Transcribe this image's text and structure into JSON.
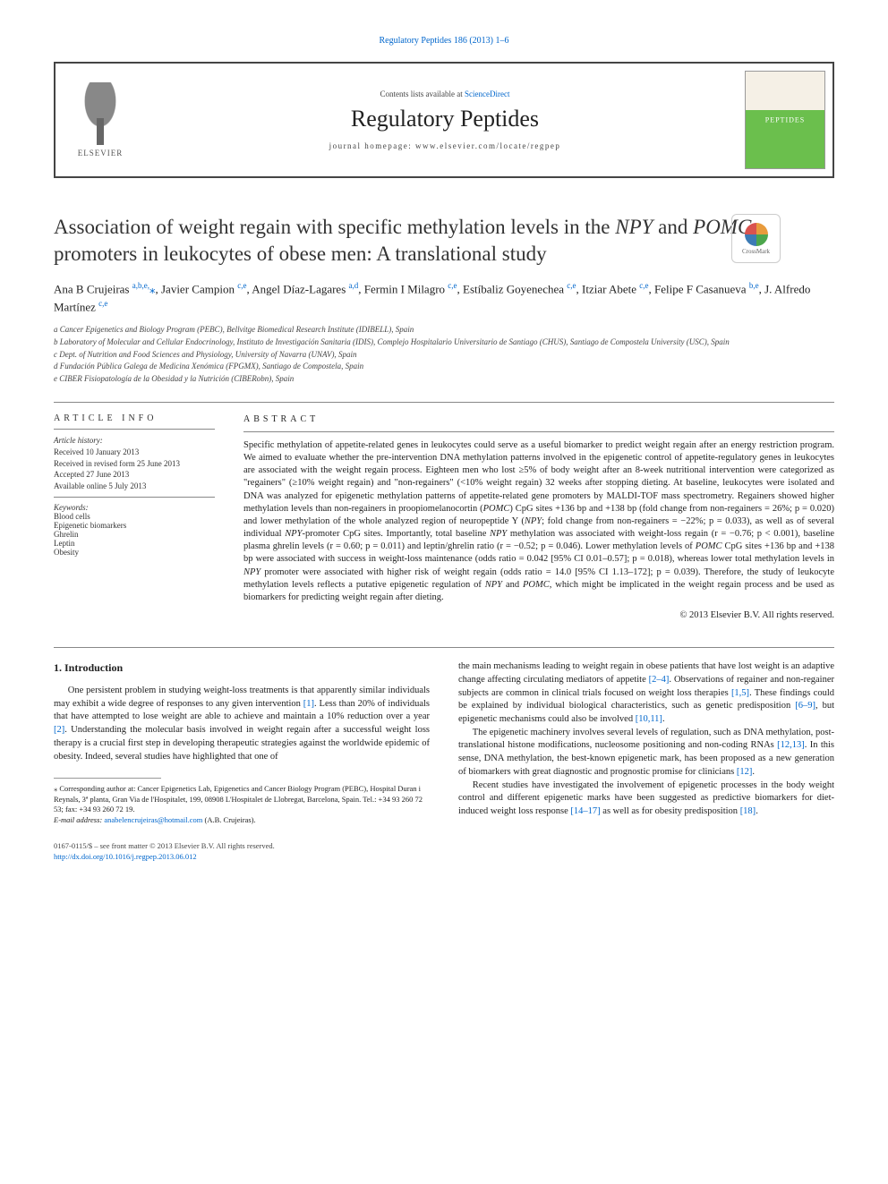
{
  "top_link": "Regulatory Peptides 186 (2013) 1–6",
  "header": {
    "contents_prefix": "Contents lists available at ",
    "contents_link": "ScienceDirect",
    "journal_title": "Regulatory Peptides",
    "homepage_prefix": "journal homepage: ",
    "homepage_url": "www.elsevier.com/locate/regpep",
    "elsevier": "ELSEVIER"
  },
  "crossmark": "CrossMark",
  "title": {
    "plain": "Association of weight regain with specific methylation levels in the NPY and POMC promoters in leukocytes of obese men: A translational study"
  },
  "authors_html": "Ana B Crujeiras <sup>a,b,e,</sup><span class='star'>⁎</span>, Javier Campion <sup>c,e</sup>, Angel Díaz-Lagares <sup>a,d</sup>, Fermin I Milagro <sup>c,e</sup>, Estíbaliz Goyenechea <sup>c,e</sup>, Itziar Abete <sup>c,e</sup>, Felipe F Casanueva <sup>b,e</sup>, J. Alfredo Martínez <sup>c,e</sup>",
  "affiliations": [
    "a  Cancer Epigenetics and Biology Program (PEBC), Bellvitge Biomedical Research Institute (IDIBELL), Spain",
    "b  Laboratory of Molecular and Cellular Endocrinology, Instituto de Investigación Sanitaria (IDIS), Complejo Hospitalario Universitario de Santiago (CHUS), Santiago de Compostela University (USC), Spain",
    "c  Dept. of Nutrition and Food Sciences and Physiology, University of Navarra (UNAV), Spain",
    "d  Fundación Pública Galega de Medicina Xenómica (FPGMX), Santiago de Compostela, Spain",
    "e  CIBER Fisiopatología de la Obesidad y la Nutrición (CIBERobn), Spain"
  ],
  "article_info": {
    "heading": "ARTICLE INFO",
    "history_label": "Article history:",
    "history": [
      "Received 10 January 2013",
      "Received in revised form 25 June 2013",
      "Accepted 27 June 2013",
      "Available online 5 July 2013"
    ],
    "keywords_label": "Keywords:",
    "keywords": [
      "Blood cells",
      "Epigenetic biomarkers",
      "Ghrelin",
      "Leptin",
      "Obesity"
    ]
  },
  "abstract": {
    "heading": "ABSTRACT",
    "text": "Specific methylation of appetite-related genes in leukocytes could serve as a useful biomarker to predict weight regain after an energy restriction program. We aimed to evaluate whether the pre-intervention DNA methylation patterns involved in the epigenetic control of appetite-regulatory genes in leukocytes are associated with the weight regain process. Eighteen men who lost ≥5% of body weight after an 8-week nutritional intervention were categorized as \"regainers\" (≥10% weight regain) and \"non-regainers\" (<10% weight regain) 32 weeks after stopping dieting. At baseline, leukocytes were isolated and DNA was analyzed for epigenetic methylation patterns of appetite-related gene promoters by MALDI-TOF mass spectrometry. Regainers showed higher methylation levels than non-regainers in proopiomelanocortin (POMC) CpG sites +136 bp and +138 bp (fold change from non-regainers = 26%; p = 0.020) and lower methylation of the whole analyzed region of neuropeptide Y (NPY; fold change from non-regainers = −22%; p = 0.033), as well as of several individual NPY-promoter CpG sites. Importantly, total baseline NPY methylation was associated with weight-loss regain (r = −0.76; p < 0.001), baseline plasma ghrelin levels (r = 0.60; p = 0.011) and leptin/ghrelin ratio (r = −0.52; p = 0.046). Lower methylation levels of POMC CpG sites +136 bp and +138 bp were associated with success in weight-loss maintenance (odds ratio = 0.042 [95% CI 0.01–0.57]; p = 0.018), whereas lower total methylation levels in NPY promoter were associated with higher risk of weight regain (odds ratio = 14.0 [95% CI 1.13–172]; p = 0.039). Therefore, the study of leukocyte methylation levels reflects a putative epigenetic regulation of NPY and POMC, which might be implicated in the weight regain process and be used as biomarkers for predicting weight regain after dieting.",
    "copyright": "© 2013 Elsevier B.V. All rights reserved."
  },
  "intro": {
    "heading": "1. Introduction",
    "p1_a": "One persistent problem in studying weight-loss treatments is that apparently similar individuals may exhibit a wide degree of responses to any given intervention ",
    "p1_r1": "[1]",
    "p1_b": ". Less than 20% of individuals that have attempted to lose weight are able to achieve and maintain a 10% reduction over a year ",
    "p1_r2": "[2]",
    "p1_c": ". Understanding the molecular basis involved in weight regain after a successful weight loss therapy is a crucial first step in developing therapeutic strategies against the worldwide epidemic of obesity. Indeed, several studies have highlighted that one of",
    "p2_a": "the main mechanisms leading to weight regain in obese patients that have lost weight is an adaptive change affecting circulating mediators of appetite ",
    "p2_r1": "[2–4]",
    "p2_b": ". Observations of regainer and non-regainer subjects are common in clinical trials focused on weight loss therapies ",
    "p2_r2": "[1,5]",
    "p2_c": ". These findings could be explained by individual biological characteristics, such as genetic predisposition ",
    "p2_r3": "[6–9]",
    "p2_d": ", but epigenetic mechanisms could also be involved ",
    "p2_r4": "[10,11]",
    "p2_e": ".",
    "p3_a": "The epigenetic machinery involves several levels of regulation, such as DNA methylation, post-translational histone modifications, nucleosome positioning and non-coding RNAs ",
    "p3_r1": "[12,13]",
    "p3_b": ". In this sense, DNA methylation, the best-known epigenetic mark, has been proposed as a new generation of biomarkers with great diagnostic and prognostic promise for clinicians ",
    "p3_r2": "[12]",
    "p3_c": ".",
    "p4_a": "Recent studies have investigated the involvement of epigenetic processes in the body weight control and different epigenetic marks have been suggested as predictive biomarkers for diet-induced weight loss response ",
    "p4_r1": "[14–17]",
    "p4_b": " as well as for obesity predisposition ",
    "p4_r2": "[18]",
    "p4_c": "."
  },
  "footnote": {
    "corr": "⁎ Corresponding author at: Cancer Epigenetics Lab, Epigenetics and Cancer Biology Program (PEBC), Hospital Duran i Reynals, 3ª planta, Gran Via de l'Hospitalet, 199, 08908 L'Hospitalet de Llobregat, Barcelona, Spain. Tel.: +34 93 260 72 53; fax: +34 93 260 72 19.",
    "email_label": "E-mail address: ",
    "email": "anabelencrujeiras@hotmail.com",
    "email_tail": " (A.B. Crujeiras)."
  },
  "bottom": {
    "left1": "0167-0115/$ – see front matter © 2013 Elsevier B.V. All rights reserved.",
    "doi": "http://dx.doi.org/10.1016/j.regpep.2013.06.012"
  },
  "colors": {
    "link": "#0066cc",
    "text": "#222222",
    "rule": "#888888"
  }
}
